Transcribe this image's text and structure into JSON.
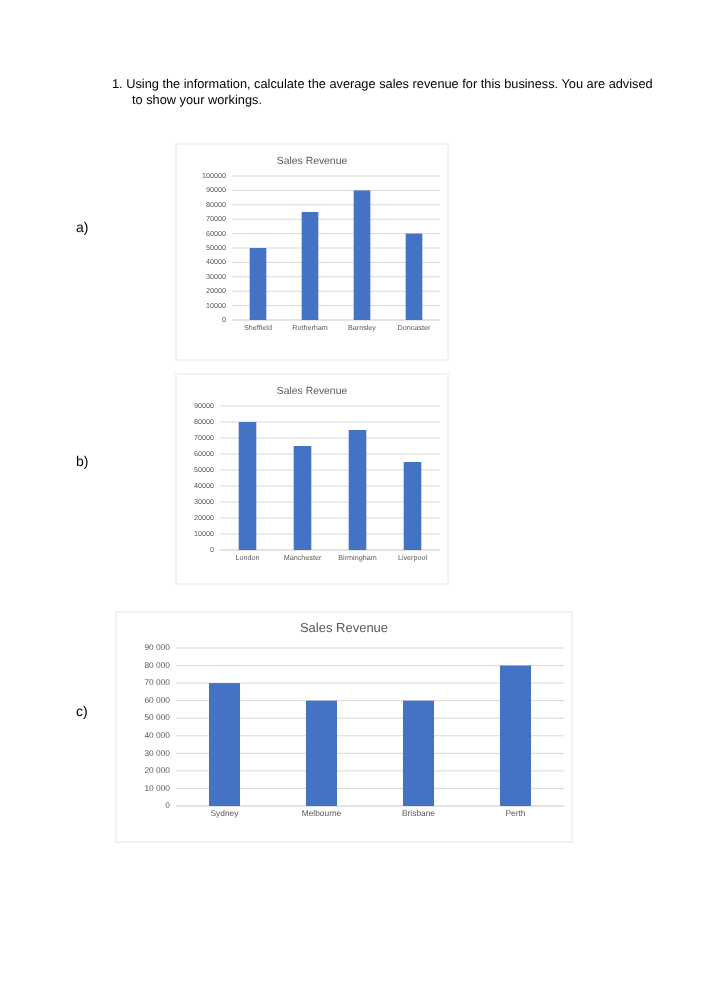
{
  "chart_data": [
    {
      "type": "bar",
      "title": "Sales Revenue",
      "annotations": [
        "1. Using the information, calculate the average sales revenue for this business. You are advised to show your workings.",
        "a)"
      ],
      "categories": [
        "Sheffield",
        "Rotherham",
        "Barnsley",
        "Doncaster"
      ],
      "values": [
        50000,
        75000,
        90000,
        60000
      ],
      "color": "#4472c4",
      "ylim": [
        0,
        100000
      ],
      "yticks": [
        0,
        10000,
        20000,
        30000,
        40000,
        50000,
        60000,
        70000,
        80000,
        90000,
        100000
      ],
      "grid": "y"
    },
    {
      "type": "bar",
      "title": "Sales Revenue",
      "annotations": [
        "b)"
      ],
      "categories": [
        "London",
        "Manchester",
        "Birmingham",
        "Liverpool"
      ],
      "values": [
        80000,
        65000,
        75000,
        55000
      ],
      "color": "#4472c4",
      "ylim": [
        0,
        90000
      ],
      "yticks": [
        0,
        10000,
        20000,
        30000,
        40000,
        50000,
        60000,
        70000,
        80000,
        90000
      ],
      "grid": "y"
    },
    {
      "type": "bar",
      "title": "Sales Revenue",
      "annotations": [
        "c)"
      ],
      "categories": [
        "Sydney",
        "Melbourne",
        "Brisbane",
        "Perth"
      ],
      "values": [
        70000,
        60000,
        60000,
        80000
      ],
      "color": "#4472c4",
      "ylim": [
        0,
        90000
      ],
      "yticks": [
        0,
        {
          "value": 10000,
          "label": "10 000"
        },
        {
          "value": 20000,
          "label": "20 000"
        },
        {
          "value": 30000,
          "label": "30 000"
        },
        {
          "value": 40000,
          "label": "40 000"
        },
        {
          "value": 50000,
          "label": "50 000"
        },
        {
          "value": 60000,
          "label": "60 000"
        },
        {
          "value": 70000,
          "label": "70 000"
        },
        {
          "value": 80000,
          "label": "80 000"
        },
        {
          "value": 90000,
          "label": "90 000"
        }
      ],
      "grid": "y"
    }
  ]
}
